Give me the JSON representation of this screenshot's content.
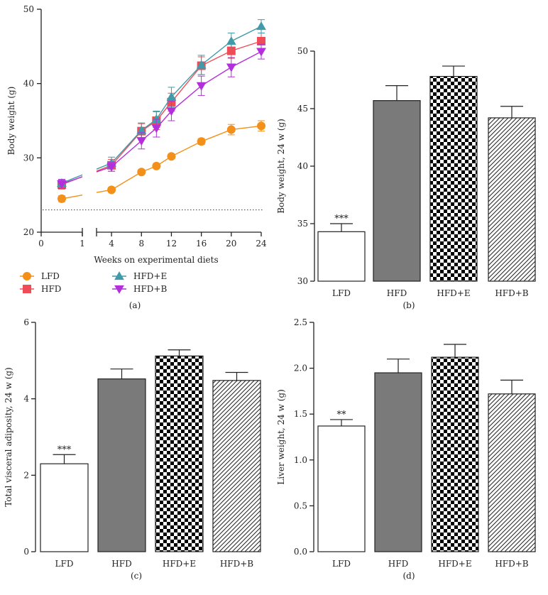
{
  "panel_captions": [
    "(a)",
    "(b)",
    "(c)",
    "(d)"
  ],
  "colors": {
    "LFD": "#f39019",
    "HFD": "#ee4d57",
    "HFD+E": "#3f9aaa",
    "HFD+B": "#b42fdc",
    "bar_hfd": "#7a7a7a",
    "axis": "#222222"
  },
  "chart_data": [
    {
      "id": "a",
      "type": "line",
      "caption": "(a)",
      "xlabel": "Weeks on experimental diets",
      "ylabel": "Body weight (g)",
      "ylim": [
        20,
        50
      ],
      "y_ticks": [
        20,
        30,
        40,
        50
      ],
      "x_segments": [
        {
          "range": [
            0,
            1
          ],
          "ticks": [
            "0",
            "1"
          ]
        },
        {
          "range": [
            2,
            24
          ],
          "ticks": [
            "4",
            "8",
            "12",
            "16",
            "20",
            "24"
          ]
        }
      ],
      "reference_line_y": 23,
      "legend": {
        "placement": "bottom-left",
        "entries": [
          "LFD",
          "HFD",
          "HFD+E",
          "HFD+B"
        ]
      },
      "series": [
        {
          "name": "LFD",
          "marker": "circle",
          "points": [
            [
              0.5,
              24.5,
              0.4
            ],
            [
              4,
              25.7,
              0.3
            ],
            [
              8,
              28.1,
              0.3
            ],
            [
              10,
              28.9,
              0.3
            ],
            [
              12,
              30.2,
              0.3
            ],
            [
              16,
              32.2,
              0.4
            ],
            [
              20,
              33.8,
              0.7
            ],
            [
              24,
              34.3,
              0.7
            ]
          ]
        },
        {
          "name": "HFD",
          "marker": "square",
          "points": [
            [
              0.5,
              26.4,
              0.6
            ],
            [
              4,
              29.0,
              0.8
            ],
            [
              8,
              33.6,
              1.0
            ],
            [
              10,
              35.0,
              1.2
            ],
            [
              12,
              37.5,
              1.2
            ],
            [
              16,
              42.4,
              1.2
            ],
            [
              20,
              44.4,
              1.0
            ],
            [
              24,
              45.7,
              1.1
            ]
          ]
        },
        {
          "name": "HFD+E",
          "marker": "triangle-up",
          "points": [
            [
              0.5,
              26.6,
              0.5
            ],
            [
              4,
              29.3,
              0.8
            ],
            [
              8,
              33.7,
              1.0
            ],
            [
              10,
              35.2,
              1.1
            ],
            [
              12,
              38.2,
              1.3
            ],
            [
              16,
              42.5,
              1.3
            ],
            [
              20,
              45.7,
              1.1
            ],
            [
              24,
              47.7,
              0.9
            ]
          ]
        },
        {
          "name": "HFD+B",
          "marker": "triangle-down",
          "points": [
            [
              0.5,
              26.5,
              0.6
            ],
            [
              4,
              28.8,
              0.6
            ],
            [
              8,
              32.3,
              1.1
            ],
            [
              10,
              34.0,
              1.2
            ],
            [
              12,
              36.3,
              1.3
            ],
            [
              16,
              39.7,
              1.3
            ],
            [
              20,
              42.2,
              1.3
            ],
            [
              24,
              44.3,
              1.0
            ]
          ]
        }
      ]
    },
    {
      "id": "b",
      "type": "bar",
      "caption": "(b)",
      "ylabel": "Body weight, 24 w (g)",
      "ylim": [
        30,
        50
      ],
      "y_ticks": [
        30,
        35,
        40,
        45,
        50
      ],
      "categories": [
        "LFD",
        "HFD",
        "HFD+E",
        "HFD+B"
      ],
      "values": [
        34.3,
        45.7,
        47.8,
        44.2
      ],
      "errors": [
        0.7,
        1.3,
        0.9,
        1.0
      ],
      "annotations": [
        "***",
        "",
        "",
        ""
      ]
    },
    {
      "id": "c",
      "type": "bar",
      "caption": "(c)",
      "ylabel": "Total visceral adiposity, 24 w (g)",
      "ylim": [
        0,
        6
      ],
      "y_ticks": [
        0,
        2,
        4,
        6
      ],
      "categories": [
        "LFD",
        "HFD",
        "HFD+E",
        "HFD+B"
      ],
      "values": [
        2.3,
        4.52,
        5.12,
        4.48
      ],
      "errors": [
        0.24,
        0.26,
        0.16,
        0.21
      ],
      "annotations": [
        "***",
        "",
        "",
        ""
      ]
    },
    {
      "id": "d",
      "type": "bar",
      "caption": "(d)",
      "ylabel": "Liver weight, 24 w (g)",
      "ylim": [
        0,
        2.5
      ],
      "y_ticks": [
        "0.0",
        "0.5",
        "1.0",
        "1.5",
        "2.0",
        "2.5"
      ],
      "categories": [
        "LFD",
        "HFD",
        "HFD+E",
        "HFD+B"
      ],
      "values": [
        1.37,
        1.95,
        2.12,
        1.72
      ],
      "errors": [
        0.07,
        0.15,
        0.14,
        0.15
      ],
      "annotations": [
        "**",
        "",
        "",
        ""
      ]
    }
  ]
}
